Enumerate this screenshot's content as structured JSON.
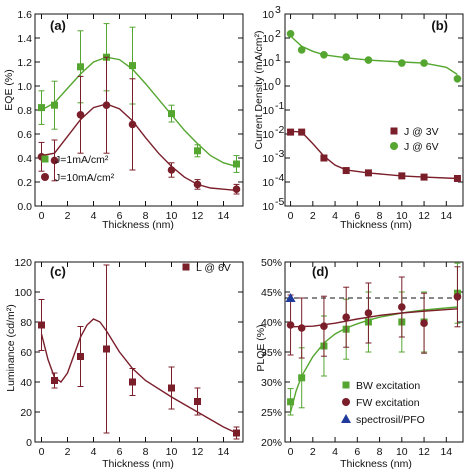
{
  "chart_data": [
    {
      "panel": "(a)",
      "type": "line",
      "xlabel": "Thickness (nm)",
      "ylabel": "EQE (%)",
      "xlim": [
        -0.5,
        15.5
      ],
      "ylim": [
        0.0,
        1.6
      ],
      "xticks": [
        0,
        2,
        4,
        6,
        8,
        10,
        12,
        14
      ],
      "yticks": [
        0.0,
        0.2,
        0.4,
        0.6,
        0.8,
        1.0,
        1.2,
        1.4,
        1.6
      ],
      "ytick_labels": [
        "0.0",
        "0.2",
        "0.4",
        "0.6",
        "0.8",
        "1.0",
        "1.2",
        "1.4",
        "1.6"
      ],
      "grid": false,
      "legend": "lower-left",
      "series": [
        {
          "name": "J=1mA/cm²",
          "color": "#55a630",
          "marker": "square",
          "x": [
            0,
            1,
            3,
            5,
            7,
            10,
            12,
            15
          ],
          "y": [
            0.82,
            0.84,
            1.16,
            1.24,
            1.17,
            0.77,
            0.46,
            0.35
          ],
          "err": [
            0.14,
            0.2,
            0.3,
            0.28,
            0.32,
            0.07,
            0.05,
            0.07
          ],
          "fit": [
            [
              0,
              0.8
            ],
            [
              1,
              0.86
            ],
            [
              2,
              0.98
            ],
            [
              3,
              1.1
            ],
            [
              4,
              1.2
            ],
            [
              5,
              1.24
            ],
            [
              6,
              1.22
            ],
            [
              7,
              1.14
            ],
            [
              8,
              1.02
            ],
            [
              9,
              0.89
            ],
            [
              10,
              0.76
            ],
            [
              11,
              0.63
            ],
            [
              12,
              0.52
            ],
            [
              13,
              0.42
            ],
            [
              14,
              0.36
            ],
            [
              15,
              0.33
            ]
          ]
        },
        {
          "name": "J=10mA/cm²",
          "color": "#7a1e2a",
          "marker": "circle",
          "x": [
            0,
            1,
            3,
            5,
            7,
            10,
            12,
            15
          ],
          "y": [
            0.41,
            0.38,
            0.76,
            0.84,
            0.68,
            0.3,
            0.18,
            0.14
          ],
          "err": [
            0.12,
            0.17,
            0.32,
            0.4,
            0.38,
            0.06,
            0.04,
            0.04
          ],
          "fit": [
            [
              0,
              0.42
            ],
            [
              1,
              0.44
            ],
            [
              2,
              0.58
            ],
            [
              3,
              0.72
            ],
            [
              4,
              0.82
            ],
            [
              5,
              0.85
            ],
            [
              6,
              0.81
            ],
            [
              7,
              0.71
            ],
            [
              8,
              0.57
            ],
            [
              9,
              0.44
            ],
            [
              10,
              0.33
            ],
            [
              11,
              0.24
            ],
            [
              12,
              0.18
            ],
            [
              13,
              0.15
            ],
            [
              14,
              0.14
            ],
            [
              15,
              0.13
            ]
          ]
        }
      ]
    },
    {
      "panel": "(b)",
      "type": "line",
      "xlabel": "Thickness (nm)",
      "ylabel": "Current Density (mA/cm²)",
      "xlim": [
        -0.5,
        15.5
      ],
      "ylim": [
        -5,
        3
      ],
      "yscale": "log",
      "xticks": [
        0,
        2,
        4,
        6,
        8,
        10,
        12,
        14
      ],
      "yticks": [
        -5,
        -4,
        -3,
        -2,
        -1,
        0,
        1,
        2,
        3
      ],
      "ytick_labels": [
        "10",
        "10",
        "10",
        "10",
        "10",
        "10",
        "10",
        "10",
        "10"
      ],
      "ytick_exps": [
        "-5",
        "-4",
        "-3",
        "-2",
        "-1",
        "0",
        "1",
        "2",
        "3"
      ],
      "grid": false,
      "legend": "right",
      "series": [
        {
          "name": "J @ 3V",
          "color": "#7a1e2a",
          "marker": "square",
          "x": [
            0,
            1,
            3,
            5,
            7,
            10,
            12,
            15
          ],
          "y": [
            0.012,
            0.012,
            0.001,
            0.0003,
            0.00024,
            0.00018,
            0.00016,
            0.00014
          ],
          "fit": [
            [
              0,
              0.013
            ],
            [
              1,
              0.012
            ],
            [
              2,
              0.004
            ],
            [
              3,
              0.0012
            ],
            [
              4,
              0.0005
            ],
            [
              5,
              0.00032
            ],
            [
              7,
              0.00024
            ],
            [
              10,
              0.00018
            ],
            [
              12,
              0.00016
            ],
            [
              15,
              0.00014
            ]
          ]
        },
        {
          "name": "J @ 6V",
          "color": "#55a630",
          "marker": "circle",
          "x": [
            0,
            1,
            3,
            5,
            7,
            10,
            12,
            15
          ],
          "y": [
            150,
            32,
            20,
            16,
            12,
            9,
            9,
            2
          ],
          "fit": [
            [
              0,
              120
            ],
            [
              1,
              45
            ],
            [
              2,
              28
            ],
            [
              3,
              20
            ],
            [
              5,
              15
            ],
            [
              7,
              12
            ],
            [
              10,
              10
            ],
            [
              12,
              9
            ],
            [
              14,
              6
            ],
            [
              15,
              3
            ]
          ]
        }
      ]
    },
    {
      "panel": "(c)",
      "type": "line",
      "xlabel": "Thickness (nm)",
      "ylabel": "Luminance (cd/m²)",
      "xlim": [
        -0.5,
        15.5
      ],
      "ylim": [
        0,
        120
      ],
      "xticks": [
        0,
        2,
        4,
        6,
        8,
        10,
        12,
        14
      ],
      "yticks": [
        0,
        20,
        40,
        60,
        80,
        100,
        120
      ],
      "ytick_labels": [
        "0",
        "20",
        "40",
        "60",
        "80",
        "100",
        "120"
      ],
      "grid": false,
      "legend": "top-right",
      "series": [
        {
          "name": "L @ 6V",
          "color": "#7a1e2a",
          "marker": "square",
          "x": [
            0,
            1,
            3,
            5,
            7,
            10,
            12,
            15
          ],
          "y": [
            78,
            41,
            57,
            62,
            40,
            36,
            27,
            6
          ],
          "err": [
            17,
            5,
            20,
            56,
            9,
            14,
            9,
            4
          ],
          "fit": [
            [
              0,
              72
            ],
            [
              0.5,
              55
            ],
            [
              1,
              43
            ],
            [
              1.5,
              40
            ],
            [
              2,
              46
            ],
            [
              2.5,
              58
            ],
            [
              3,
              70
            ],
            [
              3.5,
              78
            ],
            [
              4,
              82
            ],
            [
              4.5,
              80
            ],
            [
              5,
              74
            ],
            [
              6,
              60
            ],
            [
              7,
              49
            ],
            [
              8,
              41
            ],
            [
              10,
              30
            ],
            [
              12,
              20
            ],
            [
              14,
              10
            ],
            [
              15,
              6
            ]
          ]
        }
      ]
    },
    {
      "panel": "(d)",
      "type": "line",
      "xlabel": "Thickness (nm)",
      "ylabel": "PLQE (%)",
      "xlim": [
        -0.5,
        15.5
      ],
      "ylim": [
        20,
        50
      ],
      "xticks": [
        0,
        2,
        4,
        6,
        8,
        10,
        12,
        14
      ],
      "yticks": [
        20,
        25,
        30,
        35,
        40,
        45,
        50
      ],
      "ytick_labels": [
        "20%",
        "25%",
        "30%",
        "35%",
        "40%",
        "45%",
        "50%"
      ],
      "grid": false,
      "legend": "lower-right",
      "reference_line": 44,
      "series": [
        {
          "name": "BW excitation",
          "color": "#55a630",
          "marker": "square",
          "x": [
            0,
            1,
            3,
            5,
            7,
            10,
            12,
            15
          ],
          "y": [
            26.7,
            30.7,
            36,
            38.8,
            40,
            40,
            40,
            44.8
          ],
          "err": [
            2.2,
            5,
            5,
            5,
            5,
            5,
            5,
            5
          ],
          "fit": [
            [
              0,
              25
            ],
            [
              0.5,
              28.5
            ],
            [
              1,
              31
            ],
            [
              2,
              34.2
            ],
            [
              3,
              36.5
            ],
            [
              4,
              38
            ],
            [
              5,
              39
            ],
            [
              6,
              39.7
            ],
            [
              7,
              40.3
            ],
            [
              8,
              40.8
            ],
            [
              10,
              41.5
            ],
            [
              12,
              42
            ],
            [
              15,
              42.5
            ]
          ]
        },
        {
          "name": "FW excitation",
          "color": "#7a1e2a",
          "marker": "circle",
          "x": [
            0,
            1,
            3,
            5,
            7,
            10,
            12,
            15
          ],
          "y": [
            39.5,
            39,
            39.3,
            40.8,
            41.5,
            42.5,
            39.8,
            44.2
          ],
          "err": [
            5,
            5,
            5,
            5,
            5,
            5,
            5,
            5
          ],
          "fit": [
            [
              0,
              39.2
            ],
            [
              2,
              39.3
            ],
            [
              4,
              39.8
            ],
            [
              6,
              40.5
            ],
            [
              8,
              41.1
            ],
            [
              10,
              41.5
            ],
            [
              12,
              41.8
            ],
            [
              15,
              42.2
            ]
          ]
        },
        {
          "name": "spectrosil/PFO",
          "color": "#1f3a9a",
          "marker": "triangle",
          "x": [
            0
          ],
          "y": [
            44
          ]
        }
      ]
    }
  ]
}
